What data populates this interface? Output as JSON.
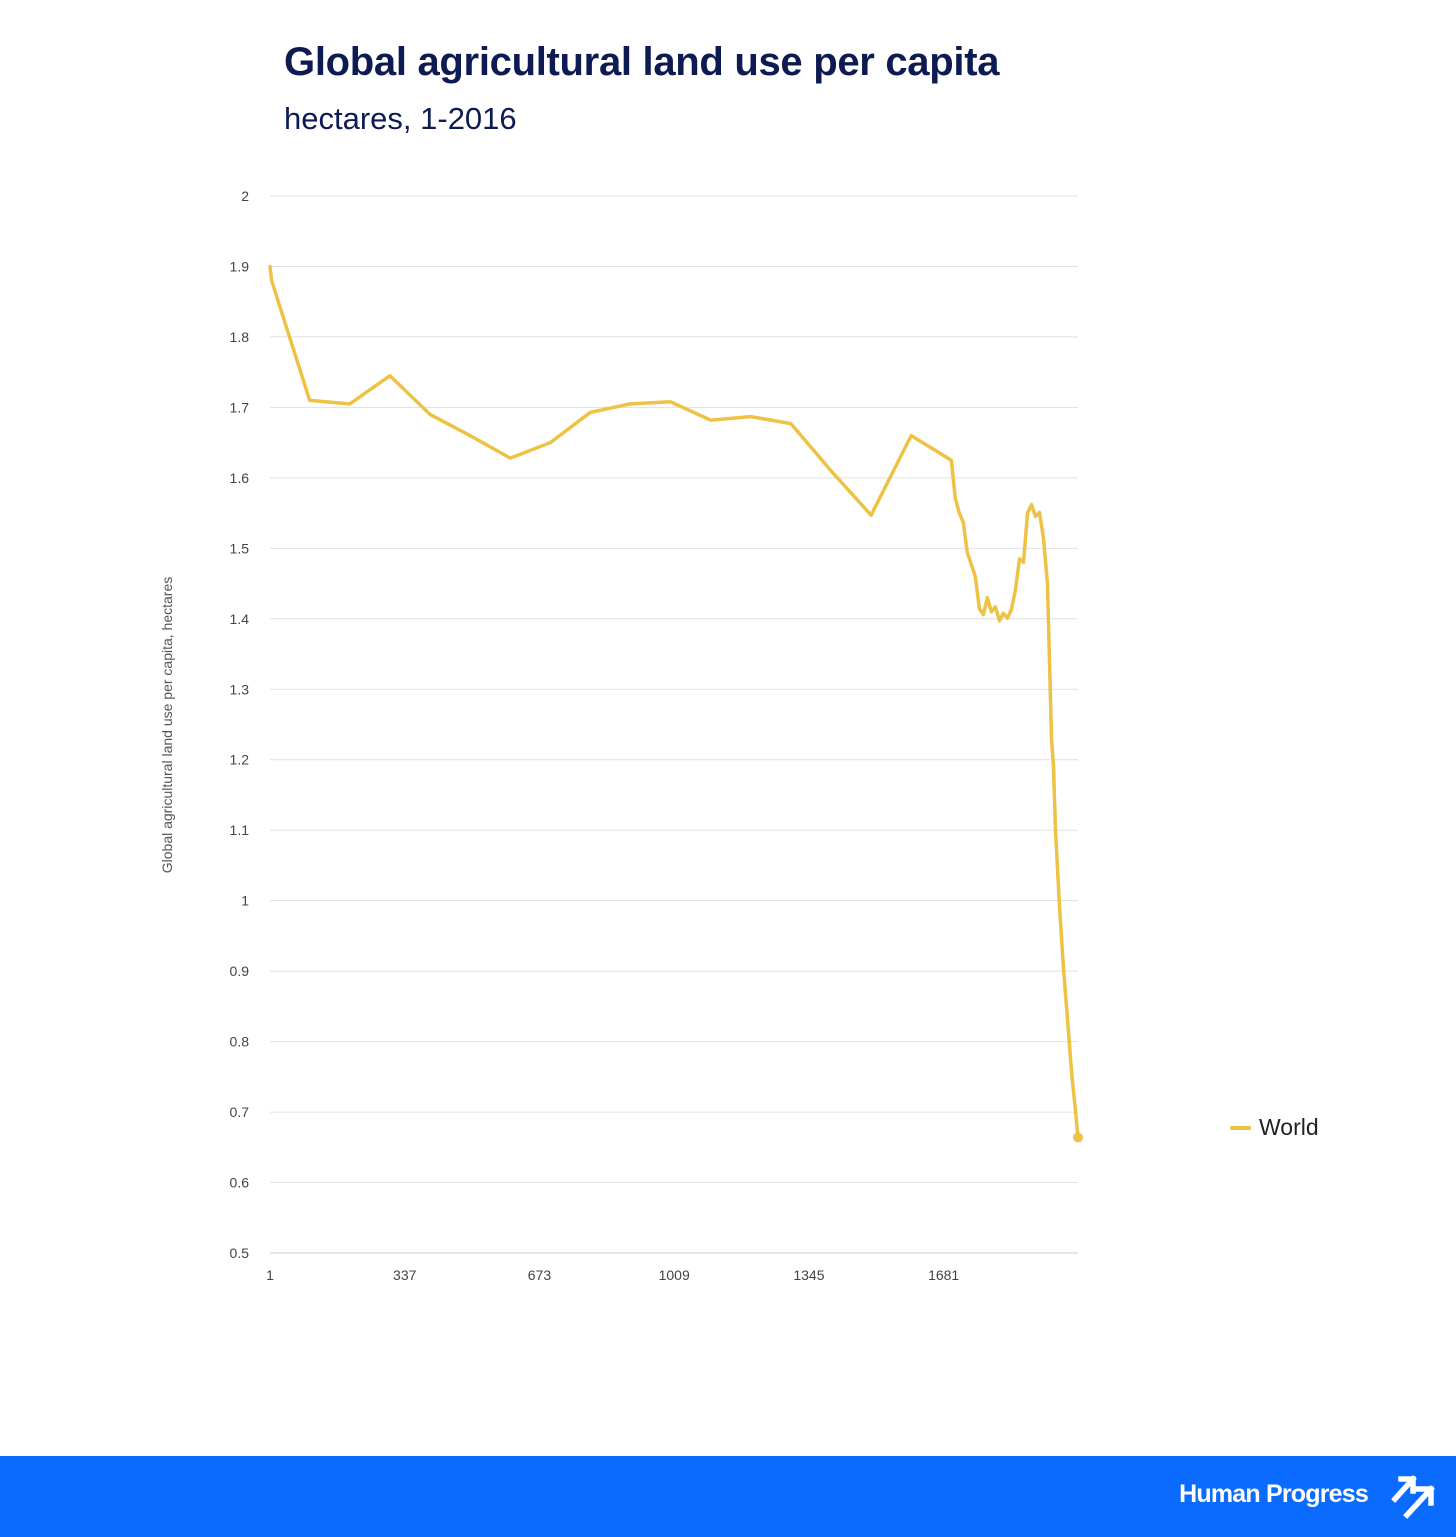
{
  "title": "Global agricultural land use per capita",
  "subtitle": "hectares, 1-2016",
  "footer": {
    "brand": "Human Progress",
    "logo_icon": "double-arrow-up-right-icon"
  },
  "colors": {
    "line": "#eec244",
    "title": "#0d1b52",
    "footer": "#0b6bff",
    "grid": "#dfe1e6"
  },
  "chart_data": {
    "type": "line",
    "ylabel": "Global agricultural land use per capita, hectares",
    "xlabel": "",
    "ylim": [
      0.5,
      2
    ],
    "xlim": [
      1,
      2016
    ],
    "y_ticks": [
      "0.5",
      "0.6",
      "0.7",
      "0.8",
      "0.9",
      "1",
      "1.1",
      "1.2",
      "1.3",
      "1.4",
      "1.5",
      "1.6",
      "1.7",
      "1.8",
      "1.9",
      "2"
    ],
    "x_ticks": [
      "1",
      "337",
      "673",
      "1009",
      "1345",
      "1681"
    ],
    "grid": true,
    "legend": "right",
    "series": [
      {
        "name": "World",
        "color": "#eec244",
        "x": [
          1,
          5,
          100,
          200,
          300,
          400,
          500,
          600,
          700,
          800,
          900,
          1000,
          1100,
          1200,
          1300,
          1400,
          1500,
          1600,
          1700,
          1710,
          1720,
          1730,
          1740,
          1750,
          1760,
          1770,
          1780,
          1790,
          1800,
          1810,
          1820,
          1830,
          1840,
          1850,
          1860,
          1870,
          1880,
          1890,
          1900,
          1910,
          1920,
          1930,
          1940,
          1950,
          1955,
          1960,
          1970,
          1980,
          1990,
          2000,
          2010,
          2016
        ],
        "values": [
          1.9,
          1.88,
          1.71,
          1.705,
          1.745,
          1.69,
          1.66,
          1.628,
          1.65,
          1.693,
          1.705,
          1.708,
          1.682,
          1.687,
          1.677,
          1.61,
          1.547,
          1.66,
          1.625,
          1.571,
          1.55,
          1.537,
          1.494,
          1.477,
          1.46,
          1.414,
          1.406,
          1.43,
          1.41,
          1.417,
          1.397,
          1.408,
          1.401,
          1.413,
          1.441,
          1.485,
          1.48,
          1.55,
          1.562,
          1.545,
          1.551,
          1.514,
          1.449,
          1.23,
          1.19,
          1.1,
          0.989,
          0.902,
          0.83,
          0.756,
          0.7,
          0.664
        ]
      }
    ]
  }
}
